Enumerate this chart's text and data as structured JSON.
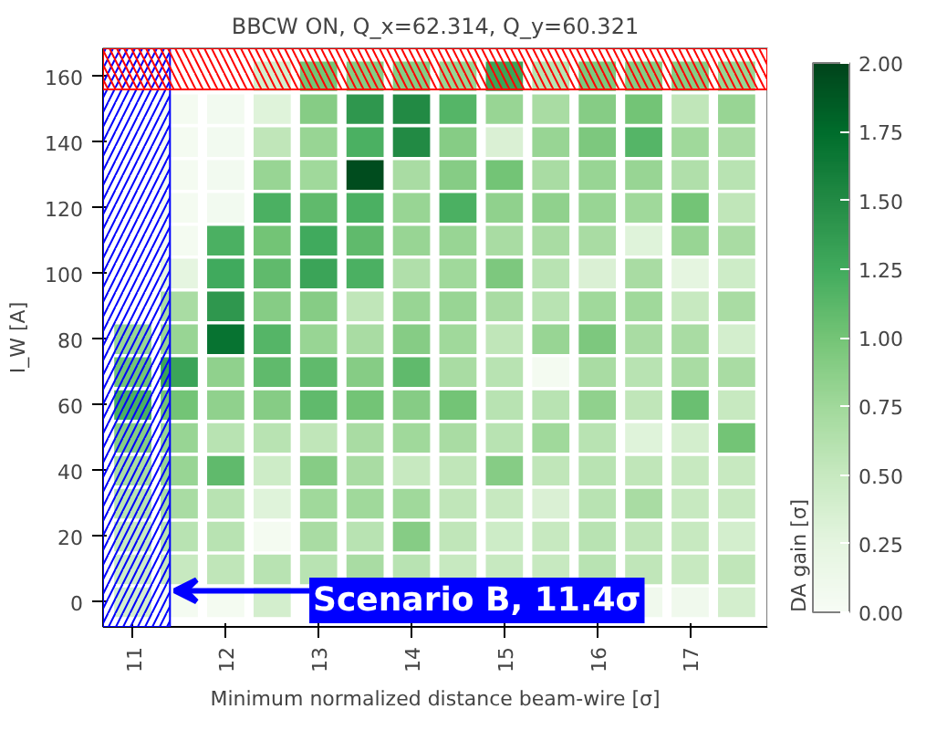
{
  "chart_data": {
    "type": "heatmap",
    "title": "BBCW ON, Q_x=62.314, Q_y=60.321",
    "xlabel": "Minimum normalized distance beam-wire [σ]",
    "ylabel": "I_W [A]",
    "clabel": "DA gain [σ]",
    "x": [
      11,
      11.5,
      12,
      12.5,
      13,
      13.5,
      14,
      14.5,
      15,
      15.5,
      16,
      16.5,
      17,
      17.5
    ],
    "y": [
      160,
      150,
      140,
      130,
      120,
      110,
      100,
      90,
      80,
      70,
      60,
      50,
      40,
      30,
      20,
      10,
      0
    ],
    "cells": [
      [
        null,
        null,
        null,
        0.4,
        1.0,
        0.9,
        0.9,
        0.8,
        1.3,
        0.6,
        0.95,
        0.9,
        0.9,
        0.8
      ],
      [
        null,
        0.05,
        0.07,
        0.3,
        0.9,
        1.4,
        1.5,
        1.15,
        0.8,
        0.7,
        0.9,
        1.0,
        0.55,
        0.8
      ],
      [
        null,
        0.05,
        0.07,
        0.55,
        0.8,
        1.2,
        1.5,
        0.9,
        0.35,
        0.8,
        0.95,
        1.15,
        0.75,
        0.7
      ],
      [
        null,
        0.05,
        0.07,
        0.8,
        0.75,
        1.95,
        0.7,
        0.9,
        1.0,
        0.7,
        0.8,
        0.8,
        0.65,
        0.6
      ],
      [
        null,
        0.05,
        0.07,
        1.2,
        1.1,
        1.2,
        0.8,
        1.2,
        0.85,
        0.85,
        0.8,
        0.75,
        1.0,
        0.55
      ],
      [
        null,
        0.05,
        1.2,
        1.0,
        1.25,
        1.1,
        0.8,
        0.8,
        0.7,
        0.7,
        0.7,
        0.3,
        0.8,
        0.7
      ],
      [
        null,
        0.25,
        1.25,
        1.1,
        1.3,
        1.2,
        0.65,
        0.75,
        0.95,
        0.6,
        0.35,
        0.7,
        0.25,
        0.45
      ],
      [
        null,
        0.7,
        1.4,
        0.9,
        0.9,
        0.55,
        0.8,
        0.8,
        0.7,
        0.6,
        0.75,
        0.75,
        0.5,
        0.7
      ],
      [
        0.8,
        0.8,
        1.7,
        1.15,
        0.8,
        0.7,
        0.9,
        0.75,
        0.55,
        0.8,
        0.95,
        0.7,
        0.7,
        0.4
      ],
      [
        1.0,
        1.3,
        0.85,
        1.1,
        1.1,
        0.9,
        1.1,
        0.7,
        0.6,
        0.05,
        0.7,
        0.6,
        0.7,
        0.7
      ],
      [
        1.2,
        1.0,
        0.85,
        0.9,
        1.1,
        1.0,
        0.9,
        1.0,
        0.6,
        0.6,
        0.85,
        0.55,
        1.05,
        0.5
      ],
      [
        0.9,
        0.8,
        0.6,
        0.6,
        0.55,
        0.7,
        0.75,
        0.7,
        0.6,
        0.75,
        0.6,
        0.3,
        0.4,
        1.0
      ],
      [
        0.7,
        0.8,
        1.1,
        0.45,
        0.9,
        0.7,
        0.5,
        0.55,
        0.9,
        0.55,
        0.6,
        0.55,
        0.5,
        0.5
      ],
      [
        0.6,
        0.7,
        0.6,
        0.3,
        0.75,
        0.75,
        0.75,
        0.55,
        0.5,
        0.35,
        0.6,
        0.7,
        0.5,
        0.5
      ],
      [
        0.5,
        0.6,
        0.6,
        0.05,
        0.7,
        0.6,
        0.9,
        0.55,
        0.45,
        0.5,
        0.6,
        0.55,
        0.5,
        0.4
      ],
      [
        0.45,
        0.5,
        0.55,
        0.6,
        0.6,
        0.7,
        0.6,
        0.5,
        0.5,
        0.5,
        0.6,
        0.55,
        0.5,
        0.55
      ],
      [
        0.4,
        0.05,
        0.05,
        0.4,
        null,
        null,
        null,
        null,
        null,
        null,
        null,
        0.1,
        0.1,
        0.4
      ]
    ],
    "xlim": [
      10.68,
      17.83
    ],
    "ylim": [
      -7.5,
      168.5
    ],
    "xticks": [
      11,
      12,
      13,
      14,
      15,
      16,
      17
    ],
    "yticks": [
      0,
      20,
      40,
      60,
      80,
      100,
      120,
      140,
      160
    ],
    "clim": [
      0,
      2
    ],
    "cticks": [
      {
        "value": 0,
        "label": "0.00"
      },
      {
        "value": 0.25,
        "label": "0.25"
      },
      {
        "value": 0.5,
        "label": "0.50"
      },
      {
        "value": 0.75,
        "label": "0.75"
      },
      {
        "value": 1,
        "label": "1.00"
      },
      {
        "value": 1.25,
        "label": "1.25"
      },
      {
        "value": 1.5,
        "label": "1.50"
      },
      {
        "value": 1.75,
        "label": "1.75"
      },
      {
        "value": 2,
        "label": "2.00"
      }
    ],
    "bands": [
      {
        "axis": "x",
        "from": 10.68,
        "to": 11.4,
        "color": "#0000ff"
      },
      {
        "axis": "y",
        "from": 156,
        "to": 168.5,
        "color": "#ff0000"
      }
    ],
    "annotations": [
      {
        "text": "Scenario B, 11.4σ",
        "x": 11.4,
        "y": 3.5
      }
    ]
  }
}
